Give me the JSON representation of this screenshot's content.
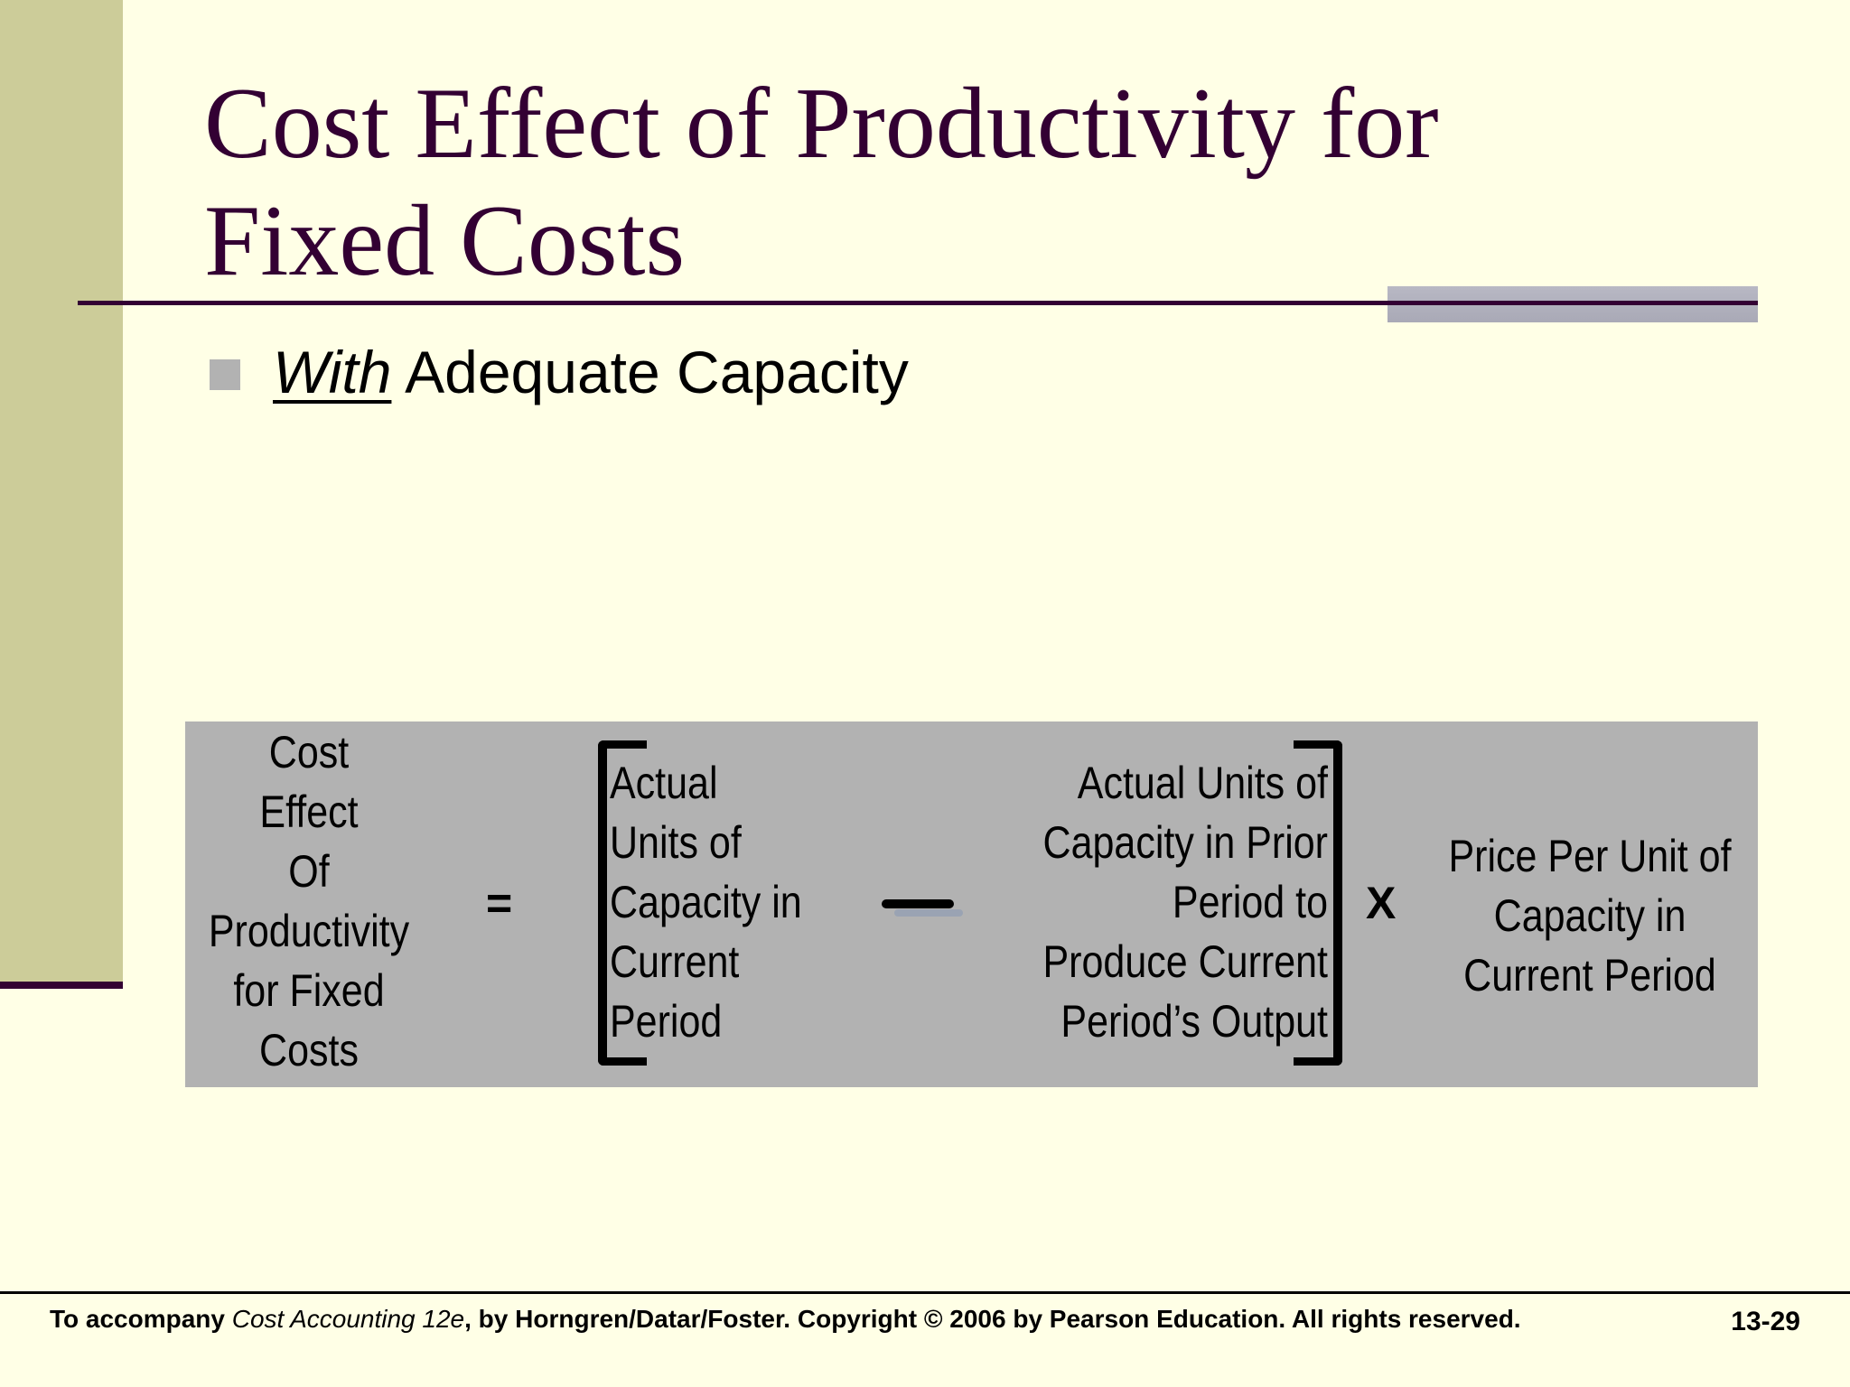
{
  "slide": {
    "title_lines": [
      "Cost Effect of Productivity for",
      "Fixed Costs"
    ],
    "bullet": {
      "emphasis": "With",
      "rest": " Adequate Capacity"
    }
  },
  "formula": {
    "lhs_lines": [
      "Cost",
      "Effect",
      "Of",
      "Productivity",
      "for Fixed",
      "Costs"
    ],
    "equals": "=",
    "term_actual_lines": [
      "Actual",
      "Units of",
      "Capacity in",
      "Current",
      "Period"
    ],
    "term_prior_lines": [
      "Actual Units of",
      "Capacity in Prior",
      "Period to",
      "Produce Current",
      "Period’s Output"
    ],
    "times": "X",
    "term_price_lines": [
      "Price Per Unit of",
      "Capacity in",
      "Current Period"
    ]
  },
  "footer": {
    "prefix": "To accompany ",
    "book": "Cost Accounting 12e",
    "suffix": ", by Horngren/Datar/Foster. Copyright © 2006 by Pearson Education. All rights reserved.",
    "page_number": "13-29"
  }
}
